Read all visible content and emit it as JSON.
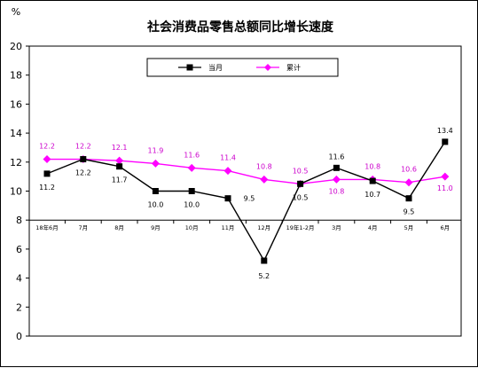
{
  "chart_data": {
    "type": "line",
    "title": "社会消费品零售总额同比增长速度",
    "y_unit_label": "%",
    "ylim": [
      0,
      20
    ],
    "y_ticks": [
      "0",
      "2",
      "4",
      "6",
      "8",
      "10",
      "12",
      "14",
      "16",
      "18",
      "20"
    ],
    "categories": [
      "18年6月",
      "7月",
      "8月",
      "9月",
      "10月",
      "11月",
      "12月",
      "19年1-2月",
      "3月",
      "4月",
      "5月",
      "6月"
    ],
    "x_axis_at": 8,
    "grid": false,
    "legend_position": "top",
    "series": [
      {
        "name": "当月",
        "color": "#000000",
        "marker": "square",
        "values": [
          11.2,
          12.2,
          11.7,
          10.0,
          10.0,
          9.5,
          5.2,
          10.5,
          11.6,
          10.7,
          9.5,
          13.4
        ],
        "labels": [
          "11.2",
          "12.2",
          "11.7",
          "10.0",
          "10.0",
          "9.5",
          "5.2",
          "10.5",
          "11.6",
          "10.7",
          "9.5",
          "13.4"
        ]
      },
      {
        "name": "累计",
        "color": "#ff00ff",
        "label_color": "#cc00cc",
        "marker": "diamond",
        "values": [
          12.2,
          12.2,
          12.1,
          11.9,
          11.6,
          11.4,
          10.8,
          10.5,
          10.8,
          10.8,
          10.6,
          11.0
        ],
        "labels": [
          "12.2",
          "12.2",
          "12.1",
          "11.9",
          "11.6",
          "11.4",
          "10.8",
          "10.5",
          "10.8",
          "10.8",
          "10.6",
          "11.0"
        ]
      }
    ]
  }
}
